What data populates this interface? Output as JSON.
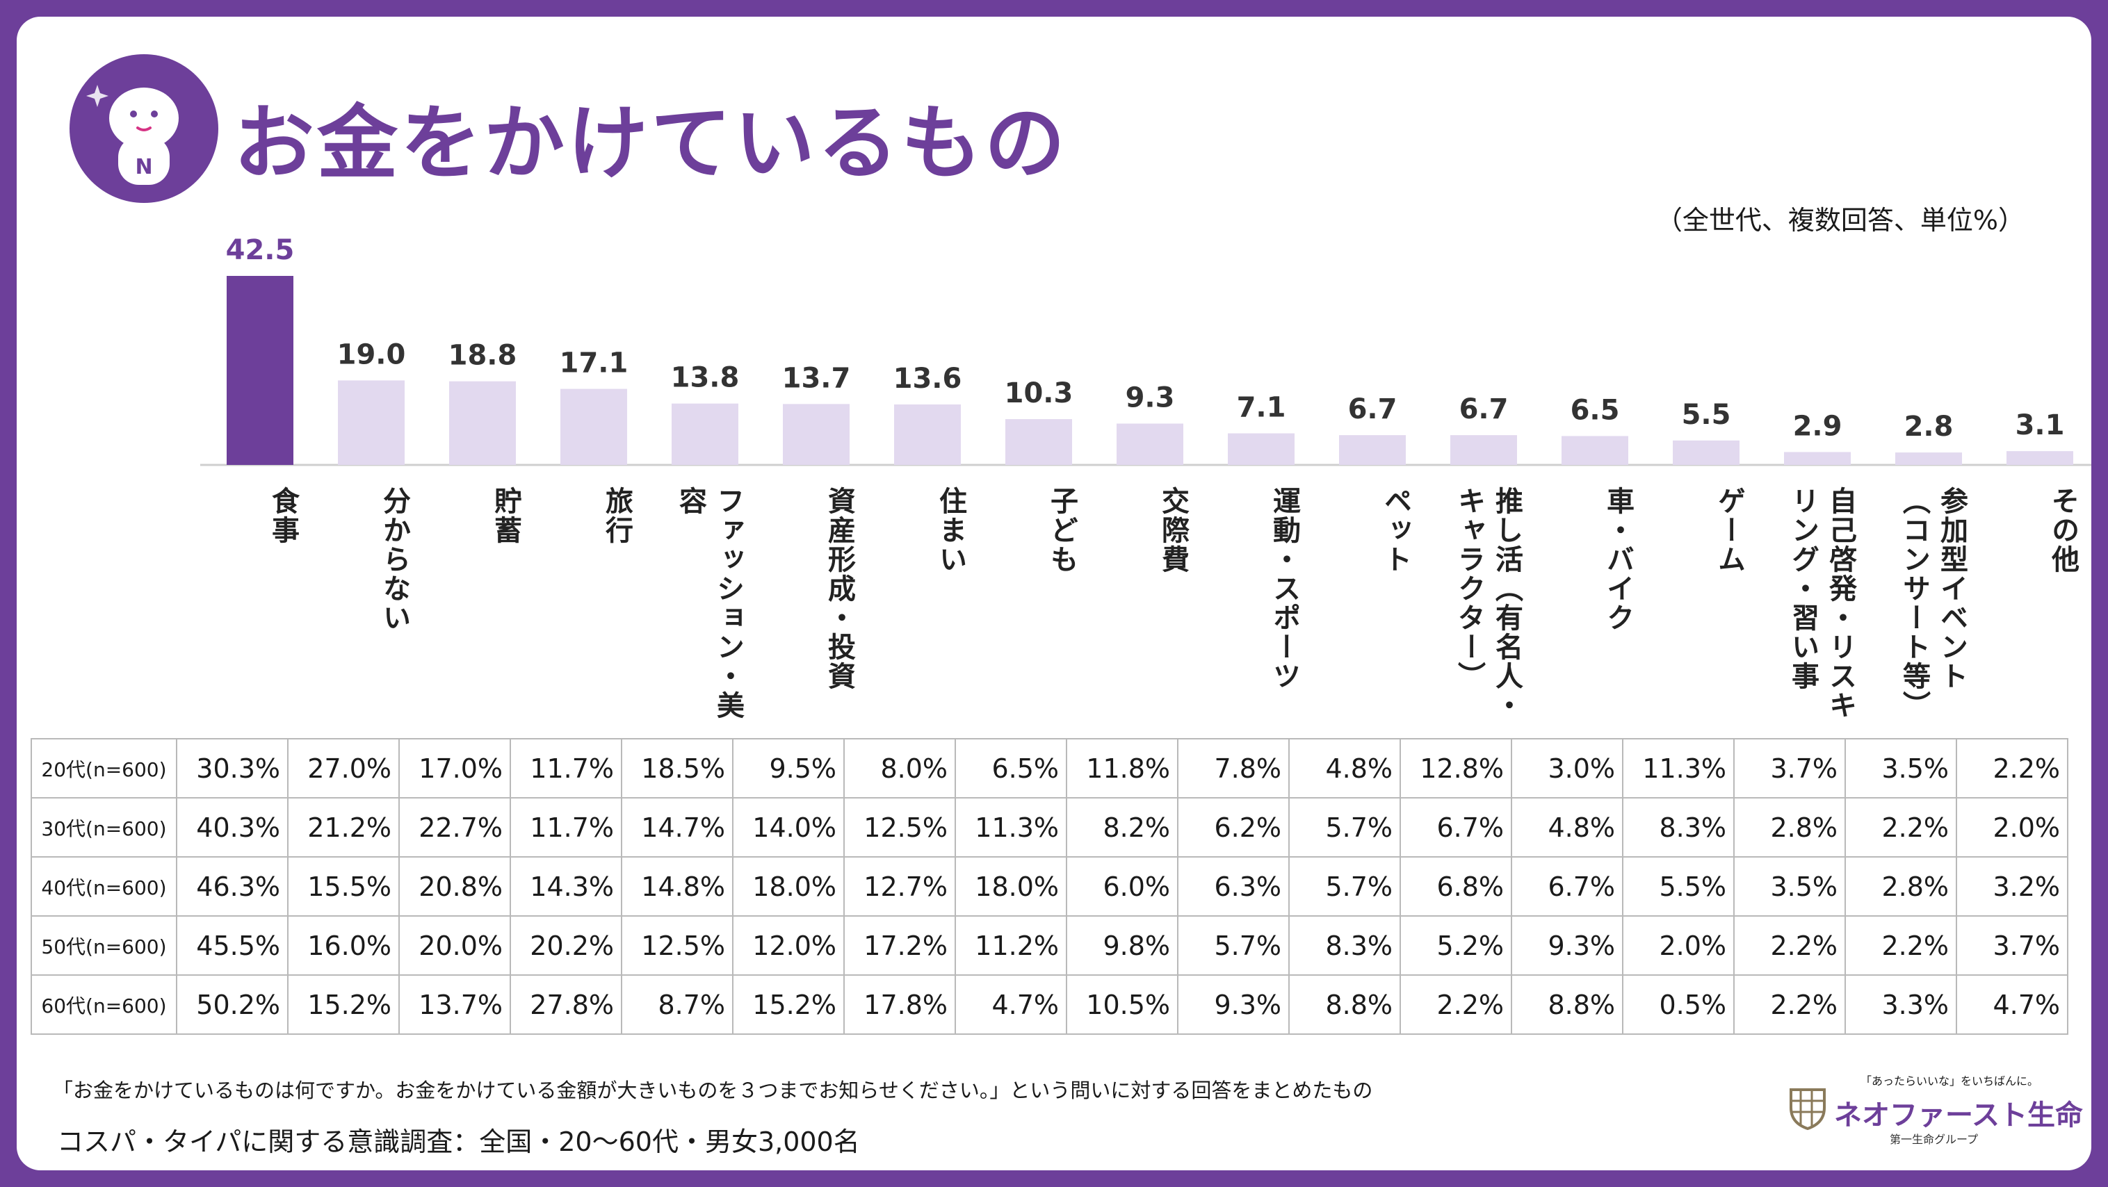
{
  "header": {
    "title": "お金をかけているもの",
    "unit_note": "（全世代、複数回答、単位%）"
  },
  "colors": {
    "brand_purple": "#6d3f9a",
    "highlight_bar": "#6d3f9a",
    "other_bars": "#e2d9ef",
    "frame": "#6d3f9a"
  },
  "chart_data": {
    "type": "bar",
    "title": "お金をかけているもの",
    "unit": "（全世代、複数回答、単位%）",
    "categories": [
      "食事",
      "分からない",
      "貯蓄",
      "旅行",
      "ファッション・美容",
      "資産形成・投資",
      "住まい",
      "子ども",
      "交際費",
      "運動・スポーツ",
      "ペット",
      "推し活（有名人・キャラクター）",
      "車・バイク",
      "ゲーム",
      "自己啓発・リスキリング・習い事",
      "参加型イベント（コンサート等）",
      "その他"
    ],
    "values": [
      42.5,
      19.0,
      18.8,
      17.1,
      13.8,
      13.7,
      13.6,
      10.3,
      9.3,
      7.1,
      6.7,
      6.7,
      6.5,
      5.5,
      2.9,
      2.8,
      3.1
    ],
    "value_labels": [
      "42.5",
      "19.0",
      "18.8",
      "17.1",
      "13.8",
      "13.7",
      "13.6",
      "10.3",
      "9.3",
      "7.1",
      "6.7",
      "6.7",
      "6.5",
      "5.5",
      "2.9",
      "2.8",
      "3.1"
    ],
    "highlight_index": 0,
    "ylim": [
      0,
      42.5
    ],
    "grid": false,
    "legend": "none"
  },
  "table": {
    "rows": [
      {
        "label": "20代(n=600)",
        "values": [
          "30.3%",
          "27.0%",
          "17.0%",
          "11.7%",
          "18.5%",
          "9.5%",
          "8.0%",
          "6.5%",
          "11.8%",
          "7.8%",
          "4.8%",
          "12.8%",
          "3.0%",
          "11.3%",
          "3.7%",
          "3.5%",
          "2.2%"
        ]
      },
      {
        "label": "30代(n=600)",
        "values": [
          "40.3%",
          "21.2%",
          "22.7%",
          "11.7%",
          "14.7%",
          "14.0%",
          "12.5%",
          "11.3%",
          "8.2%",
          "6.2%",
          "5.7%",
          "6.7%",
          "4.8%",
          "8.3%",
          "2.8%",
          "2.2%",
          "2.0%"
        ]
      },
      {
        "label": "40代(n=600)",
        "values": [
          "46.3%",
          "15.5%",
          "20.8%",
          "14.3%",
          "14.8%",
          "18.0%",
          "12.7%",
          "18.0%",
          "6.0%",
          "6.3%",
          "5.7%",
          "6.8%",
          "6.7%",
          "5.5%",
          "3.5%",
          "2.8%",
          "3.2%"
        ]
      },
      {
        "label": "50代(n=600)",
        "values": [
          "45.5%",
          "16.0%",
          "20.0%",
          "20.2%",
          "12.5%",
          "12.0%",
          "17.2%",
          "11.2%",
          "9.8%",
          "5.7%",
          "8.3%",
          "5.2%",
          "9.3%",
          "2.0%",
          "2.2%",
          "2.2%",
          "3.7%"
        ]
      },
      {
        "label": "60代(n=600)",
        "values": [
          "50.2%",
          "15.2%",
          "13.7%",
          "27.8%",
          "8.7%",
          "15.2%",
          "17.8%",
          "4.7%",
          "10.5%",
          "9.3%",
          "8.8%",
          "2.2%",
          "8.8%",
          "0.5%",
          "2.2%",
          "3.3%",
          "4.7%"
        ]
      }
    ]
  },
  "footer": {
    "question_note": "「お金をかけているものは何ですか。お金をかけている金額が大きいものを３つまでお知らせください。」という問いに対する回答をまとめたもの",
    "source_note": "コスパ・タイパに関する意識調査：全国・20～60代・男女3,000名"
  },
  "logo": {
    "tagline": "「あったらいいな」をいちばんに。",
    "name": "ネオファースト生命",
    "sub": "第一生命グループ"
  },
  "mascot": {
    "icon": "mascot-icon",
    "letter": "N"
  }
}
